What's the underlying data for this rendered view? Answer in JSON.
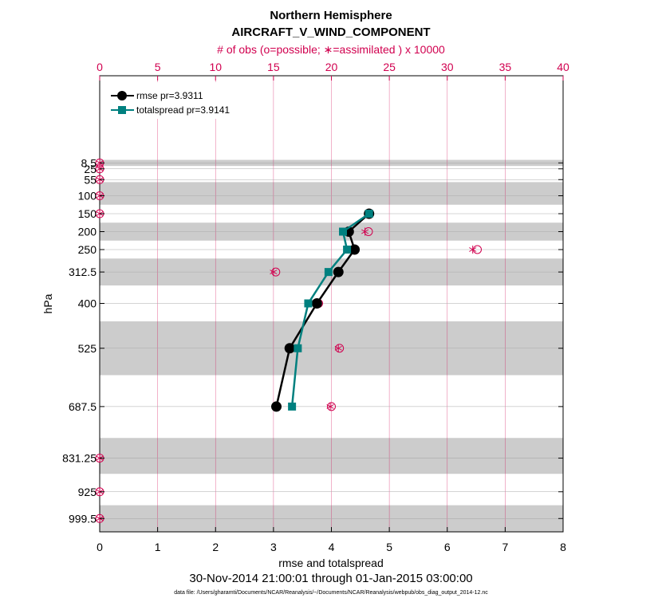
{
  "chart_data": {
    "type": "line",
    "title": "Northern Hemisphere",
    "subtitle": "AIRCRAFT_V_WIND_COMPONENT",
    "top_axis_label": "# of obs (o=possible; ∗=assimilated ) x 10000",
    "xlabel": "rmse and totalspread",
    "ylabel": "hPa",
    "date_range": "30-Nov-2014 21:00:01 through 01-Jan-2015 03:00:00",
    "data_file": "data file: /Users/gharamti/Documents/NCAR/Reanalysis/~/Documents/NCAR/Reanalysis/webpub/obs_diag_output_2014-12.nc",
    "xlim": [
      0,
      8
    ],
    "xticks": [
      "0",
      "1",
      "2",
      "3",
      "4",
      "5",
      "6",
      "7",
      "8"
    ],
    "top_xlim": [
      0,
      40
    ],
    "top_xticks": [
      "0",
      "5",
      "10",
      "15",
      "20",
      "25",
      "30",
      "35",
      "40"
    ],
    "levels": [
      8.5,
      25,
      55,
      100,
      150,
      200,
      250,
      312.5,
      400,
      525,
      687.5,
      831.25,
      925,
      999.5
    ],
    "level_labels": [
      "8.5",
      "25",
      "55",
      "100",
      "150",
      "200",
      "250",
      "312.5",
      "400",
      "525",
      "687.5",
      "831.25",
      "925",
      "999.5"
    ],
    "shaded_bands": [
      [
        0,
        17
      ],
      [
        62,
        125
      ],
      [
        175,
        225
      ],
      [
        275,
        350
      ],
      [
        450,
        600
      ],
      [
        775,
        875
      ],
      [
        962.5,
        1037
      ]
    ],
    "series": [
      {
        "name": "rmse",
        "legend": "rmse pr=3.9311",
        "color": "#000000",
        "marker": "circle",
        "points": [
          [
            4.65,
            150
          ],
          [
            4.3,
            200
          ],
          [
            4.4,
            250
          ],
          [
            4.12,
            312.5
          ],
          [
            3.75,
            400
          ],
          [
            3.28,
            525
          ],
          [
            3.05,
            687.5
          ]
        ]
      },
      {
        "name": "totalspread",
        "legend": "totalspread pr=3.9141",
        "color": "#00807f",
        "marker": "square",
        "points": [
          [
            4.65,
            150
          ],
          [
            4.2,
            200
          ],
          [
            4.27,
            250
          ],
          [
            3.95,
            312.5
          ],
          [
            3.6,
            400
          ],
          [
            3.42,
            525
          ],
          [
            3.32,
            687.5
          ]
        ]
      }
    ],
    "obs_counts": {
      "color": "#d1004f",
      "possible": [
        [
          0,
          8.5
        ],
        [
          0,
          25
        ],
        [
          0,
          55
        ],
        [
          0,
          100
        ],
        [
          0,
          150
        ],
        [
          23.2,
          200
        ],
        [
          32.6,
          250
        ],
        [
          15.2,
          312.5
        ],
        [
          18.9,
          400
        ],
        [
          20.7,
          525
        ],
        [
          20.0,
          687.5
        ],
        [
          0,
          831.25
        ],
        [
          0,
          925
        ],
        [
          0,
          999.5
        ]
      ],
      "assimilated": [
        [
          0,
          8.5
        ],
        [
          0,
          25
        ],
        [
          0,
          55
        ],
        [
          0,
          100
        ],
        [
          0,
          150
        ],
        [
          22.9,
          200
        ],
        [
          32.2,
          250
        ],
        [
          15.0,
          312.5
        ],
        [
          18.7,
          400
        ],
        [
          20.6,
          525
        ],
        [
          19.9,
          687.5
        ],
        [
          0,
          831.25
        ],
        [
          0,
          925
        ],
        [
          0,
          999.5
        ]
      ]
    },
    "legend_position": "top-left"
  }
}
